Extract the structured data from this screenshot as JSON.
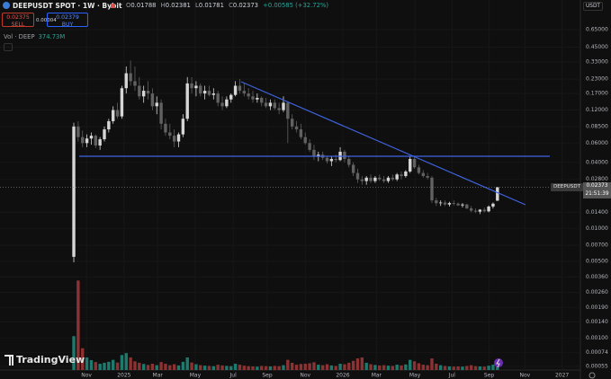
{
  "header": {
    "symbol_title": "DEEPUSDT SPOT · 1W · Bybit",
    "legend": [
      {
        "key": "O",
        "value": "0.01788"
      },
      {
        "key": "H",
        "value": "0.02381"
      },
      {
        "key": "L",
        "value": "0.01781"
      },
      {
        "key": "C",
        "value": "0.02373"
      }
    ],
    "change": "+0.00585 (+32.72%)",
    "sell": {
      "price": "0.02375",
      "label": "SELL"
    },
    "spread": "0.00004",
    "buy": {
      "price": "0.02379",
      "label": "BUY"
    },
    "currency": "USDT"
  },
  "price_label": {
    "symbol": "DEEPUSDT",
    "price": "0.02373",
    "countdown": "21:51:39"
  },
  "brand": "TradingView",
  "chart_data": {
    "type": "candlestick",
    "log_scale": true,
    "grid": true,
    "up_color": "#d6d6d6",
    "down_color": "#616161",
    "ylim": [
      0.00051,
      0.8
    ],
    "yticks": [
      {
        "value": 0.65,
        "label": "0.65000"
      },
      {
        "value": 0.45,
        "label": "0.45000"
      },
      {
        "value": 0.33,
        "label": "0.33000"
      },
      {
        "value": 0.23,
        "label": "0.23000"
      },
      {
        "value": 0.17,
        "label": "0.17000"
      },
      {
        "value": 0.12,
        "label": "0.12000"
      },
      {
        "value": 0.085,
        "label": "0.08500"
      },
      {
        "value": 0.06,
        "label": "0.06000"
      },
      {
        "value": 0.04,
        "label": "0.04000"
      },
      {
        "value": 0.028,
        "label": "0.02800"
      },
      {
        "value": 0.014,
        "label": "0.01400"
      },
      {
        "value": 0.01,
        "label": "0.01000"
      },
      {
        "value": 0.007,
        "label": "0.00700"
      },
      {
        "value": 0.005,
        "label": "0.00500"
      },
      {
        "value": 0.0036,
        "label": "0.00360"
      },
      {
        "value": 0.0026,
        "label": "0.00260"
      },
      {
        "value": 0.0019,
        "label": "0.00190"
      },
      {
        "value": 0.0014,
        "label": "0.00140"
      },
      {
        "value": 0.001,
        "label": "0.00100"
      },
      {
        "value": 0.00074,
        "label": "0.00074"
      },
      {
        "value": 0.00055,
        "label": "0.00055"
      }
    ],
    "xlim": [
      -16.9,
      116
    ],
    "xticks": [
      {
        "value": 2.9,
        "label": "Nov"
      },
      {
        "value": 11.5,
        "label": "2025"
      },
      {
        "value": 19.2,
        "label": "Mar"
      },
      {
        "value": 27.8,
        "label": "May"
      },
      {
        "value": 36.5,
        "label": "Jul"
      },
      {
        "value": 44.3,
        "label": "Sep"
      },
      {
        "value": 53,
        "label": "Nov"
      },
      {
        "value": 61.6,
        "label": "2026"
      },
      {
        "value": 69.3,
        "label": "Mar"
      },
      {
        "value": 78.1,
        "label": "May"
      },
      {
        "value": 86.6,
        "label": "Jul"
      },
      {
        "value": 95.1,
        "label": "Sep"
      },
      {
        "value": 103.3,
        "label": "Nov"
      },
      {
        "value": 111.8,
        "label": "2027"
      }
    ],
    "ohlc": [
      [
        0.0055,
        0.092,
        0.0049,
        0.085
      ],
      [
        0.085,
        0.095,
        0.062,
        0.068
      ],
      [
        0.068,
        0.078,
        0.055,
        0.06
      ],
      [
        0.06,
        0.072,
        0.055,
        0.066
      ],
      [
        0.066,
        0.075,
        0.058,
        0.07
      ],
      [
        0.07,
        0.072,
        0.054,
        0.057
      ],
      [
        0.057,
        0.068,
        0.052,
        0.065
      ],
      [
        0.065,
        0.085,
        0.062,
        0.08
      ],
      [
        0.08,
        0.1,
        0.075,
        0.095
      ],
      [
        0.095,
        0.13,
        0.09,
        0.12
      ],
      [
        0.12,
        0.14,
        0.1,
        0.105
      ],
      [
        0.105,
        0.2,
        0.1,
        0.19
      ],
      [
        0.19,
        0.3,
        0.17,
        0.26
      ],
      [
        0.26,
        0.34,
        0.2,
        0.22
      ],
      [
        0.22,
        0.3,
        0.18,
        0.2
      ],
      [
        0.2,
        0.24,
        0.15,
        0.16
      ],
      [
        0.16,
        0.2,
        0.14,
        0.18
      ],
      [
        0.18,
        0.22,
        0.15,
        0.17
      ],
      [
        0.17,
        0.19,
        0.12,
        0.13
      ],
      [
        0.13,
        0.16,
        0.11,
        0.14
      ],
      [
        0.14,
        0.15,
        0.08,
        0.09
      ],
      [
        0.09,
        0.1,
        0.07,
        0.075
      ],
      [
        0.075,
        0.09,
        0.065,
        0.07
      ],
      [
        0.07,
        0.08,
        0.055,
        0.062
      ],
      [
        0.062,
        0.075,
        0.055,
        0.072
      ],
      [
        0.072,
        0.11,
        0.068,
        0.1
      ],
      [
        0.1,
        0.24,
        0.095,
        0.21
      ],
      [
        0.21,
        0.24,
        0.17,
        0.19
      ],
      [
        0.19,
        0.22,
        0.16,
        0.2
      ],
      [
        0.2,
        0.21,
        0.16,
        0.17
      ],
      [
        0.17,
        0.2,
        0.15,
        0.18
      ],
      [
        0.18,
        0.2,
        0.16,
        0.165
      ],
      [
        0.165,
        0.19,
        0.15,
        0.17
      ],
      [
        0.17,
        0.18,
        0.13,
        0.14
      ],
      [
        0.14,
        0.16,
        0.12,
        0.13
      ],
      [
        0.13,
        0.16,
        0.125,
        0.15
      ],
      [
        0.15,
        0.17,
        0.14,
        0.165
      ],
      [
        0.165,
        0.22,
        0.16,
        0.2
      ],
      [
        0.2,
        0.23,
        0.17,
        0.18
      ],
      [
        0.18,
        0.21,
        0.16,
        0.17
      ],
      [
        0.17,
        0.19,
        0.15,
        0.16
      ],
      [
        0.16,
        0.18,
        0.14,
        0.15
      ],
      [
        0.15,
        0.17,
        0.14,
        0.155
      ],
      [
        0.155,
        0.16,
        0.13,
        0.14
      ],
      [
        0.14,
        0.155,
        0.125,
        0.13
      ],
      [
        0.13,
        0.15,
        0.12,
        0.14
      ],
      [
        0.14,
        0.15,
        0.12,
        0.125
      ],
      [
        0.125,
        0.14,
        0.11,
        0.12
      ],
      [
        0.12,
        0.16,
        0.115,
        0.14
      ],
      [
        0.14,
        0.145,
        0.06,
        0.1
      ],
      [
        0.1,
        0.11,
        0.08,
        0.085
      ],
      [
        0.085,
        0.095,
        0.075,
        0.08
      ],
      [
        0.08,
        0.09,
        0.065,
        0.068
      ],
      [
        0.068,
        0.075,
        0.058,
        0.06
      ],
      [
        0.06,
        0.065,
        0.05,
        0.052
      ],
      [
        0.052,
        0.058,
        0.042,
        0.045
      ],
      [
        0.045,
        0.05,
        0.041,
        0.047
      ],
      [
        0.047,
        0.05,
        0.042,
        0.044
      ],
      [
        0.044,
        0.046,
        0.039,
        0.041
      ],
      [
        0.041,
        0.045,
        0.037,
        0.043
      ],
      [
        0.043,
        0.047,
        0.04,
        0.042
      ],
      [
        0.042,
        0.055,
        0.041,
        0.05
      ],
      [
        0.05,
        0.052,
        0.04,
        0.043
      ],
      [
        0.043,
        0.046,
        0.036,
        0.038
      ],
      [
        0.038,
        0.04,
        0.03,
        0.032
      ],
      [
        0.032,
        0.035,
        0.026,
        0.028
      ],
      [
        0.028,
        0.03,
        0.025,
        0.027
      ],
      [
        0.027,
        0.03,
        0.025,
        0.029
      ],
      [
        0.029,
        0.031,
        0.026,
        0.027
      ],
      [
        0.027,
        0.03,
        0.026,
        0.029
      ],
      [
        0.029,
        0.031,
        0.027,
        0.028
      ],
      [
        0.028,
        0.03,
        0.026,
        0.027
      ],
      [
        0.027,
        0.03,
        0.026,
        0.029
      ],
      [
        0.029,
        0.031,
        0.027,
        0.028
      ],
      [
        0.028,
        0.032,
        0.027,
        0.031
      ],
      [
        0.031,
        0.033,
        0.028,
        0.03
      ],
      [
        0.03,
        0.034,
        0.029,
        0.033
      ],
      [
        0.033,
        0.045,
        0.032,
        0.043
      ],
      [
        0.043,
        0.046,
        0.035,
        0.036
      ],
      [
        0.036,
        0.038,
        0.031,
        0.032
      ],
      [
        0.032,
        0.034,
        0.029,
        0.03
      ],
      [
        0.03,
        0.032,
        0.028,
        0.029
      ],
      [
        0.029,
        0.03,
        0.017,
        0.018
      ],
      [
        0.018,
        0.019,
        0.016,
        0.017
      ],
      [
        0.017,
        0.018,
        0.016,
        0.0172
      ],
      [
        0.0172,
        0.018,
        0.016,
        0.0165
      ],
      [
        0.0165,
        0.0175,
        0.0158,
        0.017
      ],
      [
        0.017,
        0.018,
        0.0162,
        0.0168
      ],
      [
        0.0168,
        0.0172,
        0.016,
        0.0162
      ],
      [
        0.0162,
        0.017,
        0.0155,
        0.0165
      ],
      [
        0.0165,
        0.0168,
        0.015,
        0.0152
      ],
      [
        0.0152,
        0.016,
        0.014,
        0.0145
      ],
      [
        0.0145,
        0.0152,
        0.0138,
        0.0142
      ],
      [
        0.0142,
        0.015,
        0.0135,
        0.0148
      ],
      [
        0.0148,
        0.0155,
        0.014,
        0.0143
      ],
      [
        0.0143,
        0.0162,
        0.014,
        0.0158
      ],
      [
        0.0158,
        0.0172,
        0.0152,
        0.0168
      ],
      [
        0.01788,
        0.02381,
        0.01781,
        0.02373
      ]
    ],
    "volume": {
      "name": "Vol · DEEP",
      "last_label": "374.73M",
      "up_color": "#1f7a6e",
      "down_color": "#8c3232",
      "vlim": [
        0,
        3900000000
      ],
      "values": [
        1400000000,
        3700000000,
        900000000,
        520000000,
        410000000,
        330000000,
        260000000,
        300000000,
        340000000,
        420000000,
        310000000,
        620000000,
        700000000,
        520000000,
        360000000,
        300000000,
        250000000,
        210000000,
        260000000,
        200000000,
        330000000,
        260000000,
        200000000,
        240000000,
        190000000,
        340000000,
        520000000,
        310000000,
        240000000,
        200000000,
        180000000,
        170000000,
        160000000,
        220000000,
        190000000,
        170000000,
        160000000,
        260000000,
        220000000,
        180000000,
        160000000,
        150000000,
        140000000,
        170000000,
        160000000,
        150000000,
        170000000,
        160000000,
        200000000,
        420000000,
        300000000,
        220000000,
        250000000,
        260000000,
        280000000,
        320000000,
        220000000,
        200000000,
        240000000,
        190000000,
        170000000,
        260000000,
        240000000,
        300000000,
        380000000,
        480000000,
        520000000,
        300000000,
        240000000,
        210000000,
        190000000,
        200000000,
        180000000,
        170000000,
        220000000,
        190000000,
        230000000,
        420000000,
        360000000,
        280000000,
        220000000,
        200000000,
        480000000,
        260000000,
        200000000,
        170000000,
        150000000,
        140000000,
        150000000,
        140000000,
        170000000,
        200000000,
        160000000,
        150000000,
        140000000,
        180000000,
        220000000,
        374730000
      ]
    }
  }
}
